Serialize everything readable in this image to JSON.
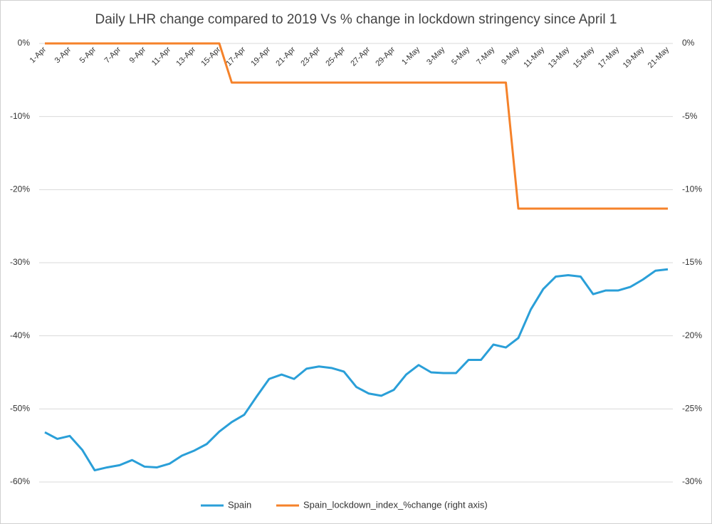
{
  "chart_data": {
    "type": "line",
    "title": "Daily LHR change compared to 2019 Vs % change in lockdown stringency since April 1",
    "categories": [
      "1-Apr",
      null,
      "3-Apr",
      null,
      "5-Apr",
      null,
      "7-Apr",
      null,
      "9-Apr",
      null,
      "11-Apr",
      null,
      "13-Apr",
      null,
      "15-Apr",
      null,
      "17-Apr",
      null,
      "19-Apr",
      null,
      "21-Apr",
      null,
      "23-Apr",
      null,
      "25-Apr",
      null,
      "27-Apr",
      null,
      "29-Apr",
      null,
      "1-May",
      null,
      "3-May",
      null,
      "5-May",
      null,
      "7-May",
      null,
      "9-May",
      null,
      "11-May",
      null,
      "13-May",
      null,
      "15-May",
      null,
      "17-May",
      null,
      "19-May",
      null,
      "21-May"
    ],
    "series": [
      {
        "name": "Spain",
        "color": "#2a9fd8",
        "values": [
          -53.2,
          -54.1,
          -53.7,
          -55.6,
          -58.4,
          -58.0,
          -57.7,
          -57.0,
          -57.9,
          -58.0,
          -57.5,
          -56.4,
          -55.7,
          -54.8,
          -53.1,
          -51.8,
          -50.8,
          -48.3,
          -45.9,
          -45.3,
          -45.9,
          -44.5,
          -44.2,
          -44.4,
          -44.9,
          -47.0,
          -47.9,
          -48.2,
          -47.4,
          -45.3,
          -44.0,
          -45.0,
          -45.1,
          -45.1,
          -43.3,
          -43.3,
          -41.2,
          -41.6,
          -40.3,
          -36.4,
          -33.6,
          -31.9,
          -31.7,
          -31.9,
          -34.3,
          -33.8,
          -33.8,
          -33.3,
          -32.3,
          -31.1,
          -30.9
        ]
      },
      {
        "name": "Spain_lockdown_index_%change (right axis)",
        "color": "#f5822a",
        "axis": "y2",
        "values": [
          0,
          0,
          0,
          0,
          0,
          0,
          0,
          0,
          0,
          0,
          0,
          0,
          0,
          0,
          0,
          -2.68,
          -2.68,
          -2.68,
          -2.68,
          -2.68,
          -2.68,
          -2.68,
          -2.68,
          -2.68,
          -2.68,
          -2.68,
          -2.68,
          -2.68,
          -2.68,
          -2.68,
          -2.68,
          -2.68,
          -2.68,
          -2.68,
          -2.68,
          -2.68,
          -2.68,
          -2.68,
          -11.3,
          -11.3,
          -11.3,
          -11.3,
          -11.3,
          -11.3,
          -11.3,
          -11.3,
          -11.3,
          -11.3,
          -11.3,
          -11.3,
          -11.3
        ]
      }
    ],
    "ylim": [
      -60,
      0
    ],
    "yticks": [
      {
        "value": 0,
        "label": "0%"
      },
      {
        "value": -10,
        "label": "-10%"
      },
      {
        "value": -20,
        "label": "-20%"
      },
      {
        "value": -30,
        "label": "-30%"
      },
      {
        "value": -40,
        "label": "-40%"
      },
      {
        "value": -50,
        "label": "-50%"
      },
      {
        "value": -60,
        "label": "-60%"
      }
    ],
    "y2lim": [
      -30,
      0
    ],
    "y2ticks": [
      {
        "value": 0,
        "label": "0%"
      },
      {
        "value": -5,
        "label": "-5%"
      },
      {
        "value": -10,
        "label": "-10%"
      },
      {
        "value": -15,
        "label": "-15%"
      },
      {
        "value": -20,
        "label": "-20%"
      },
      {
        "value": -25,
        "label": "-25%"
      },
      {
        "value": -30,
        "label": "-30%"
      }
    ],
    "grid": true,
    "legend": "bottom"
  }
}
